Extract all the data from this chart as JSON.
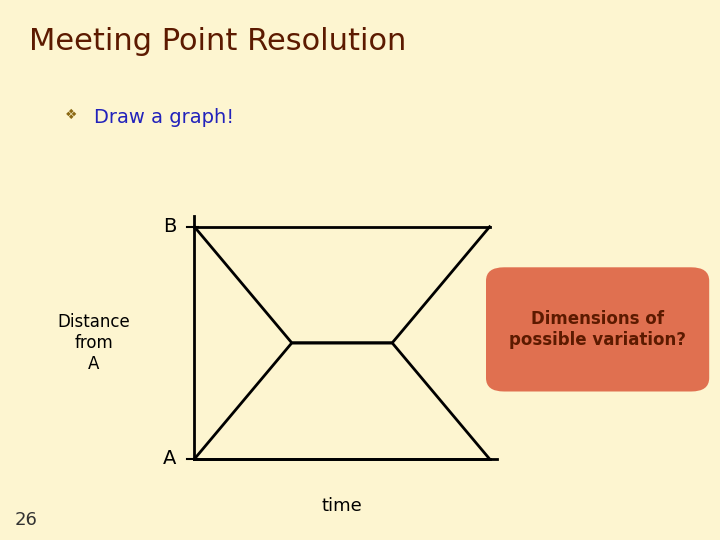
{
  "title": "Meeting Point Resolution",
  "bullet": "Draw a graph!",
  "bullet_color": "#2222bb",
  "title_color": "#5c1a00",
  "background_color": "#fdf5d0",
  "ylabel": "Distance\nfrom\nA",
  "xlabel": "time",
  "slide_number": "26",
  "box_text": "Dimensions of\npossible variation?",
  "box_color": "#e07050",
  "box_text_color": "#5c1a00",
  "line_color": "#000000",
  "line_width": 2.0,
  "lines": [
    {
      "x": [
        0,
        0.33,
        0.67,
        1.0
      ],
      "y": [
        1,
        0.5,
        0.5,
        1
      ]
    },
    {
      "x": [
        0,
        0.33,
        0.67,
        1.0
      ],
      "y": [
        0,
        0.5,
        0.5,
        0
      ]
    },
    {
      "x": [
        0,
        1.0
      ],
      "y": [
        1,
        1
      ]
    },
    {
      "x": [
        0,
        1.0
      ],
      "y": [
        0,
        0
      ]
    }
  ]
}
